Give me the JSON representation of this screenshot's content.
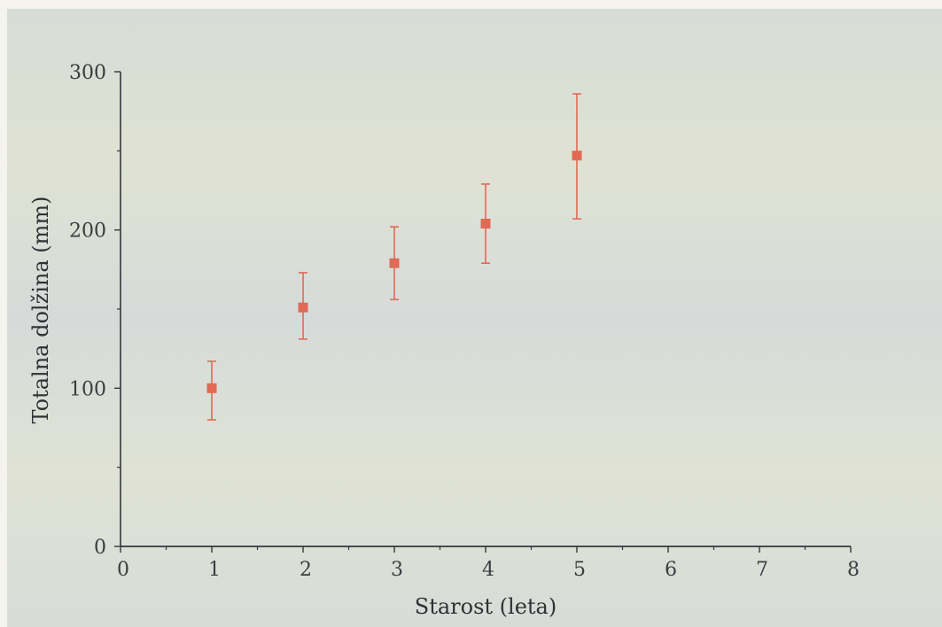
{
  "chart_data": {
    "type": "scatter",
    "title": "",
    "xlabel": "Starost (leta)",
    "ylabel": "Totalna dolžina (mm)",
    "xlim": [
      0,
      8
    ],
    "ylim": [
      0,
      300
    ],
    "x_ticks": [
      0,
      1,
      2,
      3,
      4,
      5,
      6,
      7,
      8
    ],
    "x_tick_labels": [
      "0",
      "1",
      "2",
      "3",
      "4",
      "5",
      "6",
      "7",
      "8"
    ],
    "y_tick_labels": [
      "0",
      "100",
      "200",
      "300"
    ],
    "y_ticks": [
      0,
      100,
      200,
      300
    ],
    "y_minor_ticks": [
      50,
      150,
      250
    ],
    "x_minor_ticks": [
      0.5,
      1.5,
      2.5,
      3.5,
      4.5,
      5.5,
      6.5,
      7.5
    ],
    "grid": false,
    "series": [
      {
        "marker": "square",
        "color": "#e06a55",
        "points": [
          {
            "x": 1,
            "y": 100,
            "err_low": 80,
            "err_high": 117
          },
          {
            "x": 2,
            "y": 151,
            "err_low": 131,
            "err_high": 173
          },
          {
            "x": 3,
            "y": 179,
            "err_low": 156,
            "err_high": 202
          },
          {
            "x": 4,
            "y": 204,
            "err_low": 179,
            "err_high": 229
          },
          {
            "x": 5,
            "y": 247,
            "err_low": 207,
            "err_high": 286
          }
        ]
      }
    ],
    "colors": {
      "background": "#d9dedd",
      "axis": "#34373a",
      "marker": "#e06a55"
    }
  }
}
